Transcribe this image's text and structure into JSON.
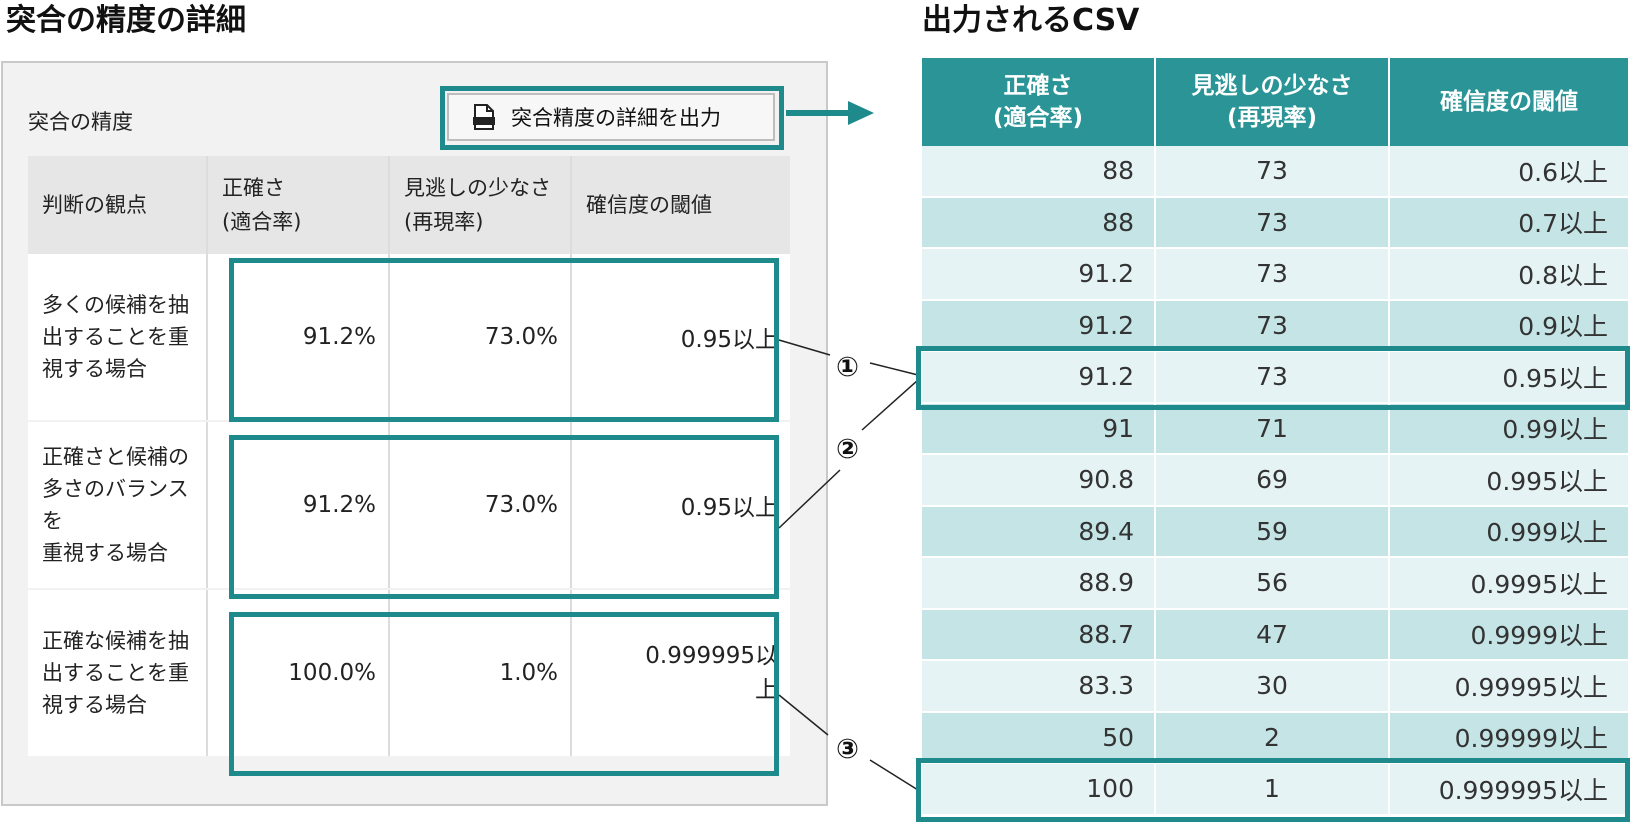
{
  "headings": {
    "left": "突合の精度の詳細",
    "right": "出力されるCSV"
  },
  "panel": {
    "title": "突合の精度",
    "export_button_label": "突合精度の詳細を出力",
    "export_icon": "document-icon",
    "table": {
      "headers": {
        "viewpoint": "判断の観点",
        "precision_line1": "正確さ",
        "precision_line2": "(適合率)",
        "recall_line1": "見逃しの少なさ",
        "recall_line2": "(再現率)",
        "threshold": "確信度の閾値"
      },
      "rows": [
        {
          "label_lines": [
            "多くの候補を抽",
            "出することを重",
            "視する場合"
          ],
          "precision": "91.2%",
          "recall": "73.0%",
          "threshold": "0.95以上"
        },
        {
          "label_lines": [
            "正確さと候補の",
            "多さのバランスを",
            "重視する場合"
          ],
          "precision": "91.2%",
          "recall": "73.0%",
          "threshold": "0.95以上"
        },
        {
          "label_lines": [
            "正確な候補を抽",
            "出することを重",
            "視する場合"
          ],
          "precision": "100.0%",
          "recall": "1.0%",
          "threshold_line1": "0.999995以",
          "threshold_line2": "上"
        }
      ]
    }
  },
  "markers": [
    "①",
    "②",
    "③"
  ],
  "csv": {
    "headers": {
      "precision_line1": "正確さ",
      "precision_line2": "(適合率)",
      "recall_line1": "見逃しの少なさ",
      "recall_line2": "(再現率)",
      "threshold": "確信度の閾値"
    },
    "rows": [
      [
        "88",
        "73",
        "0.6以上"
      ],
      [
        "88",
        "73",
        "0.7以上"
      ],
      [
        "91.2",
        "73",
        "0.8以上"
      ],
      [
        "91.2",
        "73",
        "0.9以上"
      ],
      [
        "91.2",
        "73",
        "0.95以上"
      ],
      [
        "91",
        "71",
        "0.99以上"
      ],
      [
        "90.8",
        "69",
        "0.995以上"
      ],
      [
        "89.4",
        "59",
        "0.999以上"
      ],
      [
        "88.9",
        "56",
        "0.9995以上"
      ],
      [
        "88.7",
        "47",
        "0.9999以上"
      ],
      [
        "83.3",
        "30",
        "0.99995以上"
      ],
      [
        "50",
        "2",
        "0.99999以上"
      ],
      [
        "100",
        "1",
        "0.999995以上"
      ]
    ]
  },
  "colors": {
    "teal": "#1f8a8c",
    "csv_header": "#2a9497",
    "csv_row_light": "#e5f3f4",
    "csv_row_dark": "#c4e4e6"
  }
}
